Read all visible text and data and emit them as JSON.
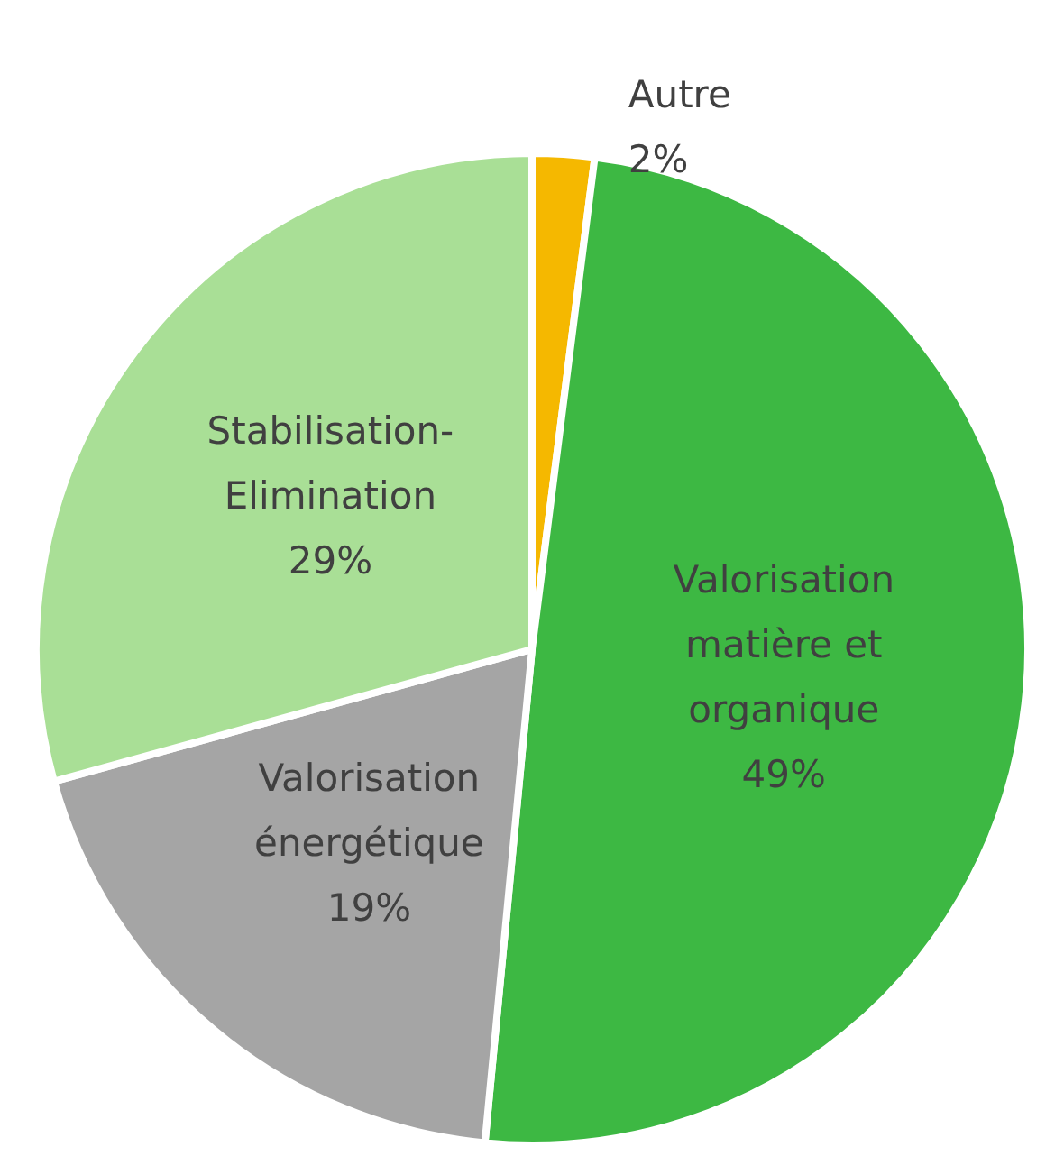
{
  "chart_data": {
    "type": "pie",
    "categories": [
      "Autre",
      "Valorisation matière et organique",
      "Valorisation énergétique",
      "Stabilisation-Elimination"
    ],
    "values": [
      2,
      49,
      19,
      29
    ],
    "colors": [
      "#f5b800",
      "#3db843",
      "#a5a5a5",
      "#a9df96"
    ],
    "value_labels": [
      "2%",
      "49%",
      "19%",
      "29%"
    ],
    "legend": false
  }
}
